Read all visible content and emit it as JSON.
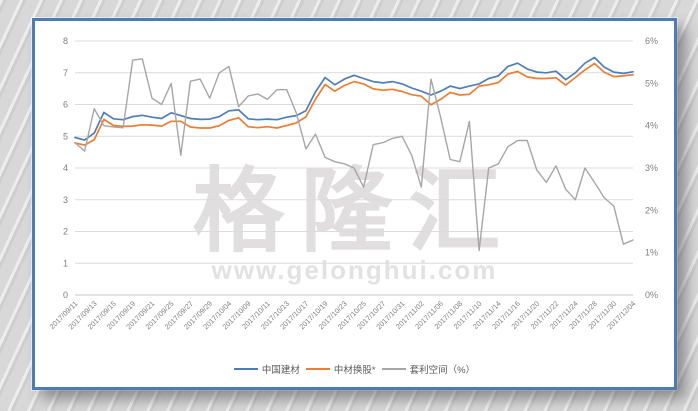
{
  "page": {
    "watermark_text": "格隆汇",
    "watermark_url": "www.gelonghui.com"
  },
  "colors": {
    "card_border": "#4d7bb5",
    "grid_line": "#dcdcdc",
    "axis_line": "#c6c6c6",
    "tick_text": "#7f7f7f",
    "series_blue": "#4e7dba",
    "series_orange": "#ed7d31",
    "series_gray": "#a6a6a6",
    "watermark": "#e0dede"
  },
  "chart_data": {
    "type": "line",
    "title": "",
    "xlabel": "",
    "ylabel_left": "",
    "ylabel_right": "",
    "grid": true,
    "legend_position": "bottom",
    "left_axis": {
      "min": 0,
      "max": 8,
      "ticks": [
        "0",
        "1",
        "2",
        "3",
        "4",
        "5",
        "6",
        "7",
        "8"
      ]
    },
    "right_axis": {
      "min": 0,
      "max": 6,
      "ticks": [
        "0%",
        "1%",
        "2%",
        "3%",
        "4%",
        "5%",
        "6%"
      ]
    },
    "x_tick_labels": [
      "2017/09/11",
      "2017/09/13",
      "2017/09/15",
      "2017/09/19",
      "2017/09/21",
      "2017/09/25",
      "2017/09/27",
      "2017/09/29",
      "2017/10/04",
      "2017/10/09",
      "2017/10/11",
      "2017/10/13",
      "2017/10/17",
      "2017/10/19",
      "2017/10/23",
      "2017/10/25",
      "2017/10/27",
      "2017/10/31",
      "2017/11/02",
      "2017/11/06",
      "2017/11/08",
      "2017/11/10",
      "2017/11/14",
      "2017/11/16",
      "2017/11/20",
      "2017/11/22",
      "2017/11/24",
      "2017/11/28",
      "2017/11/30",
      "2017/12/04"
    ],
    "dates": [
      "2017/09/11",
      "2017/09/12",
      "2017/09/13",
      "2017/09/14",
      "2017/09/15",
      "2017/09/18",
      "2017/09/19",
      "2017/09/20",
      "2017/09/21",
      "2017/09/22",
      "2017/09/25",
      "2017/09/26",
      "2017/09/27",
      "2017/09/28",
      "2017/09/29",
      "2017/10/03",
      "2017/10/04",
      "2017/10/06",
      "2017/10/09",
      "2017/10/10",
      "2017/10/11",
      "2017/10/12",
      "2017/10/13",
      "2017/10/16",
      "2017/10/17",
      "2017/10/18",
      "2017/10/19",
      "2017/10/20",
      "2017/10/23",
      "2017/10/24",
      "2017/10/25",
      "2017/10/26",
      "2017/10/27",
      "2017/10/30",
      "2017/10/31",
      "2017/11/01",
      "2017/11/02",
      "2017/11/03",
      "2017/11/06",
      "2017/11/07",
      "2017/11/08",
      "2017/11/09",
      "2017/11/10",
      "2017/11/13",
      "2017/11/14",
      "2017/11/15",
      "2017/11/16",
      "2017/11/17",
      "2017/11/20",
      "2017/11/21",
      "2017/11/22",
      "2017/11/23",
      "2017/11/24",
      "2017/11/27",
      "2017/11/28",
      "2017/11/29",
      "2017/11/30",
      "2017/12/01",
      "2017/12/04"
    ],
    "series": [
      {
        "name": "中国建材",
        "axis": "left",
        "color": "#4e7dba",
        "values": [
          4.96,
          4.88,
          5.1,
          5.75,
          5.55,
          5.52,
          5.62,
          5.66,
          5.6,
          5.56,
          5.74,
          5.65,
          5.56,
          5.53,
          5.54,
          5.62,
          5.8,
          5.83,
          5.55,
          5.52,
          5.54,
          5.52,
          5.6,
          5.65,
          5.8,
          6.4,
          6.85,
          6.62,
          6.8,
          6.92,
          6.82,
          6.72,
          6.68,
          6.72,
          6.65,
          6.52,
          6.42,
          6.3,
          6.42,
          6.58,
          6.5,
          6.58,
          6.65,
          6.82,
          6.9,
          7.2,
          7.3,
          7.12,
          7.02,
          7.0,
          7.05,
          6.78,
          7.0,
          7.3,
          7.48,
          7.18,
          7.02,
          6.98,
          7.03
        ]
      },
      {
        "name": "中材换股*",
        "axis": "left",
        "color": "#ed7d31",
        "values": [
          4.79,
          4.72,
          4.89,
          5.53,
          5.34,
          5.31,
          5.32,
          5.36,
          5.35,
          5.32,
          5.47,
          5.47,
          5.29,
          5.26,
          5.26,
          5.33,
          5.5,
          5.58,
          5.3,
          5.27,
          5.3,
          5.26,
          5.34,
          5.42,
          5.61,
          6.17,
          6.63,
          6.42,
          6.6,
          6.72,
          6.65,
          6.49,
          6.45,
          6.48,
          6.41,
          6.31,
          6.26,
          5.99,
          6.16,
          6.38,
          6.3,
          6.32,
          6.58,
          6.62,
          6.69,
          6.96,
          7.04,
          6.87,
          6.82,
          6.82,
          6.84,
          6.61,
          6.85,
          7.09,
          7.29,
          7.02,
          6.88,
          6.9,
          6.94
        ]
      },
      {
        "name": "套利空间（%）",
        "axis": "right",
        "color": "#a6a6a6",
        "values": [
          3.6,
          3.4,
          4.4,
          4.0,
          3.97,
          3.95,
          5.55,
          5.58,
          4.65,
          4.5,
          5.0,
          3.3,
          5.05,
          5.1,
          4.65,
          5.25,
          5.4,
          4.45,
          4.7,
          4.75,
          4.62,
          4.85,
          4.85,
          4.3,
          3.45,
          3.8,
          3.25,
          3.15,
          3.1,
          3.0,
          2.55,
          3.55,
          3.6,
          3.7,
          3.75,
          3.3,
          2.55,
          5.1,
          4.2,
          3.2,
          3.15,
          4.1,
          1.05,
          3.0,
          3.1,
          3.5,
          3.65,
          3.65,
          2.95,
          2.66,
          3.05,
          2.5,
          2.25,
          3.0,
          2.66,
          2.3,
          2.1,
          1.2,
          1.3
        ]
      }
    ]
  }
}
